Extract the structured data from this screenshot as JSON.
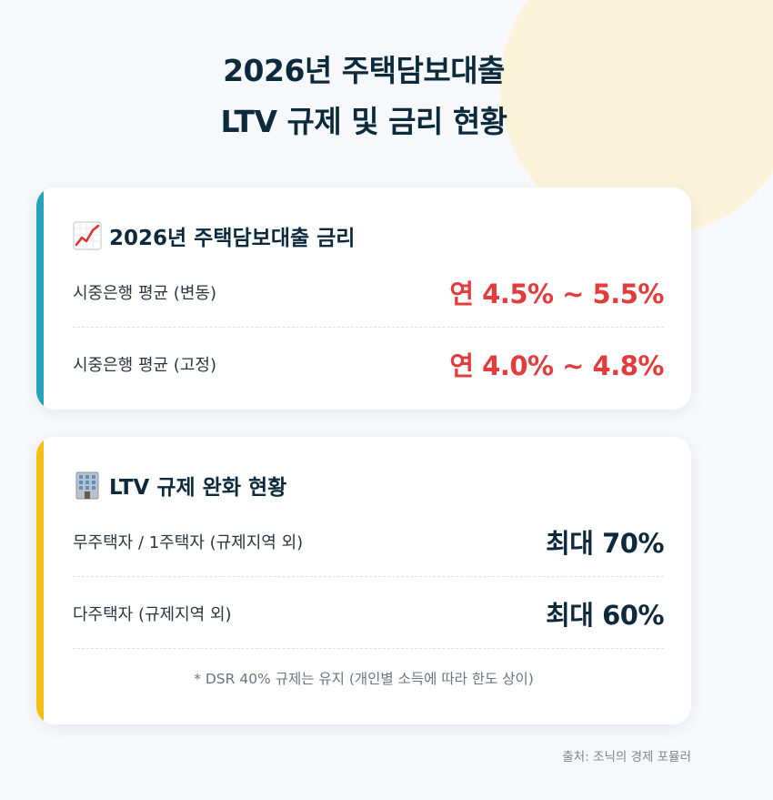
{
  "header": {
    "title_line1": "2026년 주택담보대출",
    "title_line2": "LTV 규제 및 금리 현황"
  },
  "rate_card": {
    "icon": "chart-increasing-icon",
    "accent_color": "#25a3bd",
    "title": "2026년 주택담보대출 금리",
    "rows": [
      {
        "label": "시중은행 평균 (변동)",
        "value": "연 4.5% ~ 5.5%"
      },
      {
        "label": "시중은행 평균 (고정)",
        "value": "연 4.0% ~ 4.8%"
      }
    ]
  },
  "ltv_card": {
    "icon": "office-building-icon",
    "accent_color": "#f7be16",
    "title": "LTV 규제 완화 현황",
    "rows": [
      {
        "label": "무주택자 / 1주택자 (규제지역 외)",
        "value": "최대 70%"
      },
      {
        "label": "다주택자 (규제지역 외)",
        "value": "최대 60%"
      }
    ],
    "note": "* DSR 40% 규제는 유지 (개인별 소득에 따라 한도 상이)"
  },
  "footer": {
    "source": "출처: 조닉의 경제 포뮬러"
  }
}
